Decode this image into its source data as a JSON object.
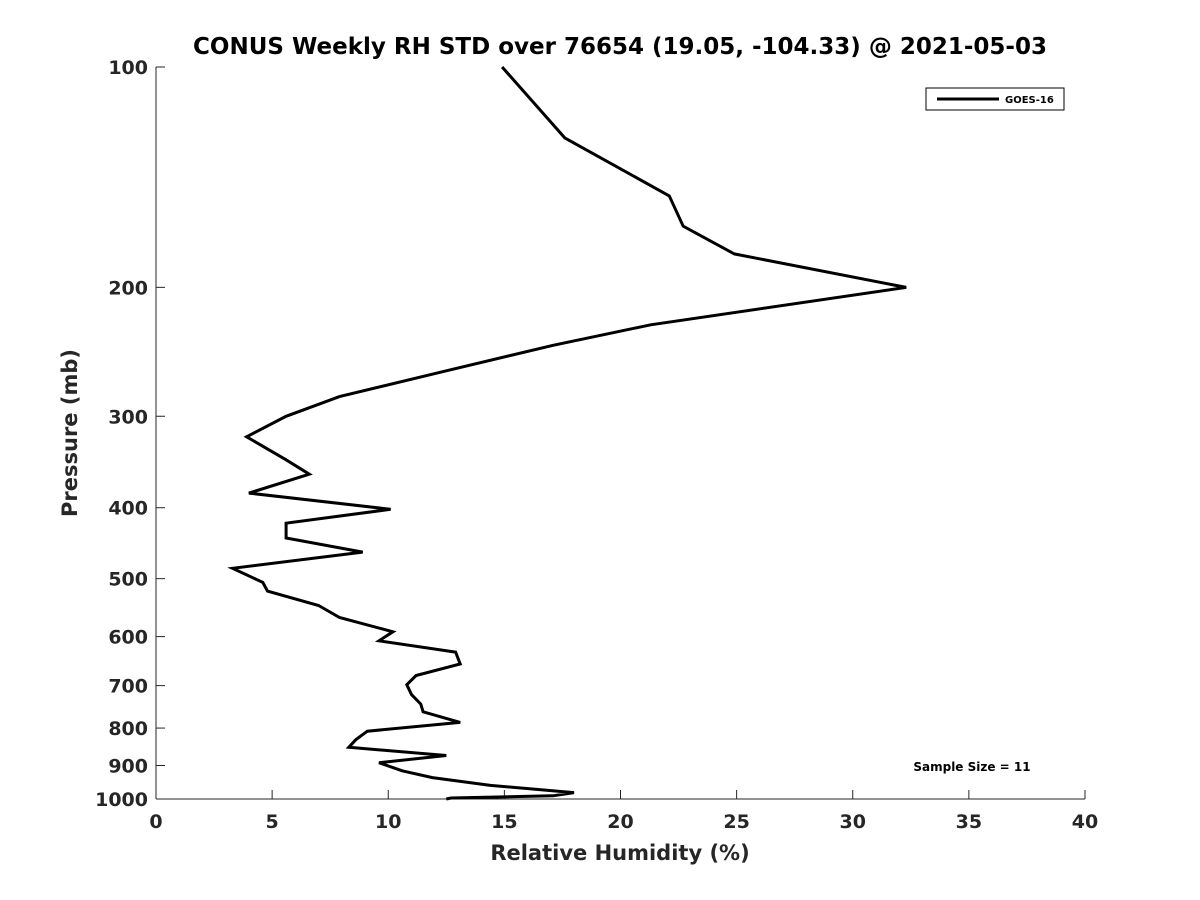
{
  "chart_data": {
    "type": "line",
    "title": "CONUS Weekly RH STD over 76654 (19.05, -104.33) @ 2021-05-03",
    "xlabel": "Relative Humidity (%)",
    "ylabel": "Pressure (mb)",
    "xlim": [
      0,
      40
    ],
    "ylim": [
      100,
      1000
    ],
    "y_scale": "log",
    "y_reversed": true,
    "x_ticks": [
      "0",
      "5",
      "10",
      "15",
      "20",
      "25",
      "30",
      "35",
      "40"
    ],
    "y_ticks": [
      "100",
      "200",
      "300",
      "400",
      "500",
      "600",
      "700",
      "800",
      "900",
      "1000"
    ],
    "grid": false,
    "legend_position": "top-right",
    "series": [
      {
        "name": "GOES-16",
        "color": "#000000",
        "points": [
          [
            14.9,
            100
          ],
          [
            17.6,
            125
          ],
          [
            22.1,
            150
          ],
          [
            22.7,
            165
          ],
          [
            24.9,
            180
          ],
          [
            32.3,
            200
          ],
          [
            21.3,
            225
          ],
          [
            17.1,
            240
          ],
          [
            12.5,
            260
          ],
          [
            7.9,
            282
          ],
          [
            5.6,
            300
          ],
          [
            3.9,
            320
          ],
          [
            5.6,
            344
          ],
          [
            6.6,
            360
          ],
          [
            4.0,
            382
          ],
          [
            10.1,
            402
          ],
          [
            5.6,
            420
          ],
          [
            5.6,
            440
          ],
          [
            8.9,
            460
          ],
          [
            3.3,
            484
          ],
          [
            4.6,
            506
          ],
          [
            4.8,
            520
          ],
          [
            7.0,
            544
          ],
          [
            7.9,
            565
          ],
          [
            10.2,
            591
          ],
          [
            9.6,
            608
          ],
          [
            12.9,
            630
          ],
          [
            13.1,
            654
          ],
          [
            11.2,
            678
          ],
          [
            10.8,
            698
          ],
          [
            11.0,
            720
          ],
          [
            11.4,
            742
          ],
          [
            11.5,
            760
          ],
          [
            13.1,
            786
          ],
          [
            9.1,
            808
          ],
          [
            8.6,
            830
          ],
          [
            8.3,
            850
          ],
          [
            12.5,
            872
          ],
          [
            9.6,
            892
          ],
          [
            10.6,
            915
          ],
          [
            11.9,
            935
          ],
          [
            14.4,
            958
          ],
          [
            18.0,
            980
          ],
          [
            17.1,
            990
          ],
          [
            12.7,
            997
          ],
          [
            12.5,
            1000
          ]
        ]
      }
    ]
  },
  "annotation": "Sample Size = 11"
}
